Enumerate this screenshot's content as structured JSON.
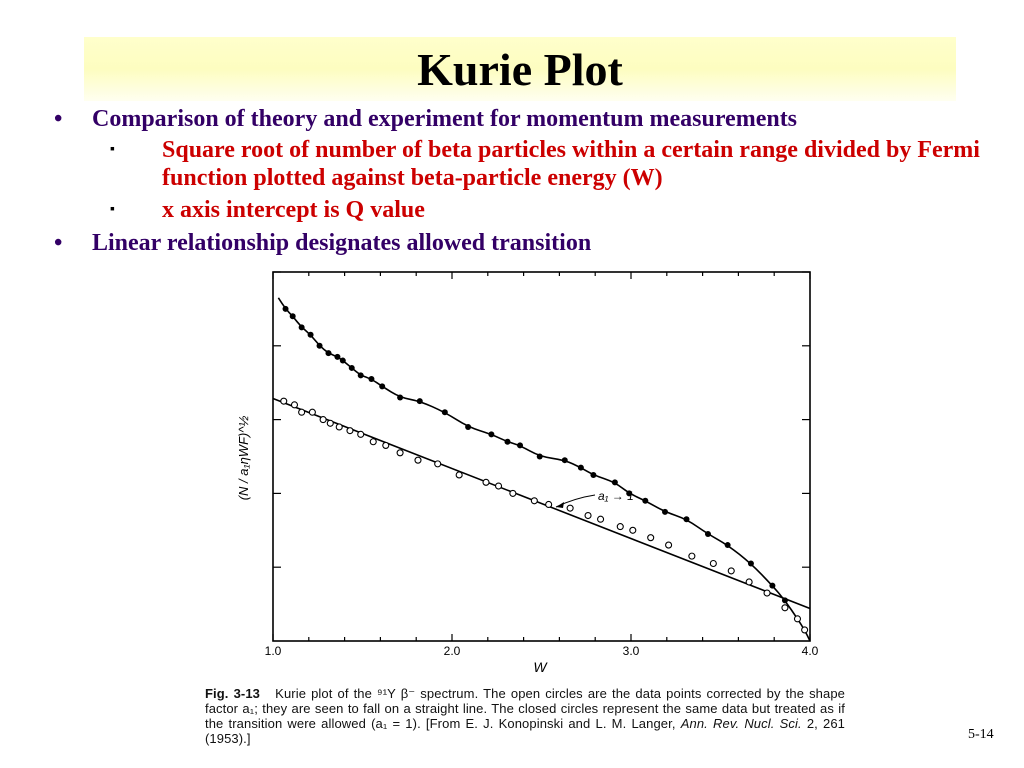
{
  "slide": {
    "title": "Kurie Plot",
    "bullets": [
      {
        "marker": "•",
        "text": "Comparison of theory and experiment for momentum measurements"
      },
      {
        "marker": "▪",
        "text": "Square root of number of beta particles within a certain range divided by Fermi function plotted against beta-particle energy (W)"
      },
      {
        "marker": "▪",
        "text": "x axis intercept is Q value"
      },
      {
        "marker": "•",
        "text": "Linear relationship designates allowed transition"
      }
    ],
    "slide_number": "5-14"
  },
  "caption": {
    "fig_label": "Fig. 3-13",
    "text_1": "Kurie plot of the ⁹¹Y β⁻ spectrum. The open circles are the data points corrected by the shape factor a₁; they are seen to fall on a straight line. The closed circles represent the same data but treated as if the transition were allowed (a₁ = 1). [From E. J. Konopinski and L. M. Langer,",
    "journal": "Ann. Rev. Nucl. Sci.",
    "text_2": "2, 261 (1953).]"
  },
  "chart_data": {
    "type": "scatter",
    "title": "",
    "xlabel": "W",
    "ylabel": "(N / a₁ηWF)^½",
    "xlim": [
      1.0,
      4.0
    ],
    "ylim": [
      0,
      1.0
    ],
    "x_ticks": [
      "1.0",
      "2.0",
      "3.0",
      "4.0"
    ],
    "annotation": "a₁ → 1",
    "colors": {
      "axes": "#000000",
      "filled": "#000000",
      "open_fill": "#ffffff"
    },
    "series": [
      {
        "marker": "filled",
        "fit": "curve",
        "points": [
          [
            1.07,
            0.9
          ],
          [
            1.11,
            0.88
          ],
          [
            1.16,
            0.85
          ],
          [
            1.21,
            0.83
          ],
          [
            1.26,
            0.8
          ],
          [
            1.31,
            0.78
          ],
          [
            1.36,
            0.77
          ],
          [
            1.39,
            0.76
          ],
          [
            1.44,
            0.74
          ],
          [
            1.49,
            0.72
          ],
          [
            1.55,
            0.71
          ],
          [
            1.61,
            0.69
          ],
          [
            1.71,
            0.66
          ],
          [
            1.82,
            0.65
          ],
          [
            1.96,
            0.62
          ],
          [
            2.09,
            0.58
          ],
          [
            2.22,
            0.56
          ],
          [
            2.31,
            0.54
          ],
          [
            2.38,
            0.53
          ],
          [
            2.49,
            0.5
          ],
          [
            2.63,
            0.49
          ],
          [
            2.72,
            0.47
          ],
          [
            2.79,
            0.45
          ],
          [
            2.91,
            0.43
          ],
          [
            2.99,
            0.4
          ],
          [
            3.08,
            0.38
          ],
          [
            3.19,
            0.35
          ],
          [
            3.31,
            0.33
          ],
          [
            3.43,
            0.29
          ],
          [
            3.54,
            0.26
          ],
          [
            3.67,
            0.21
          ],
          [
            3.79,
            0.15
          ],
          [
            3.86,
            0.11
          ],
          [
            3.93,
            0.06
          ],
          [
            3.97,
            0.03
          ]
        ]
      },
      {
        "marker": "open",
        "fit": "line",
        "points": [
          [
            1.06,
            0.65
          ],
          [
            1.12,
            0.64
          ],
          [
            1.16,
            0.62
          ],
          [
            1.22,
            0.62
          ],
          [
            1.28,
            0.6
          ],
          [
            1.32,
            0.59
          ],
          [
            1.37,
            0.58
          ],
          [
            1.43,
            0.57
          ],
          [
            1.49,
            0.56
          ],
          [
            1.56,
            0.54
          ],
          [
            1.63,
            0.53
          ],
          [
            1.71,
            0.51
          ],
          [
            1.81,
            0.49
          ],
          [
            1.92,
            0.48
          ],
          [
            2.04,
            0.45
          ],
          [
            2.19,
            0.43
          ],
          [
            2.26,
            0.42
          ],
          [
            2.34,
            0.4
          ],
          [
            2.46,
            0.38
          ],
          [
            2.54,
            0.37
          ],
          [
            2.66,
            0.36
          ],
          [
            2.76,
            0.34
          ],
          [
            2.83,
            0.33
          ],
          [
            2.94,
            0.31
          ],
          [
            3.01,
            0.3
          ],
          [
            3.11,
            0.28
          ],
          [
            3.21,
            0.26
          ],
          [
            3.34,
            0.23
          ],
          [
            3.46,
            0.21
          ],
          [
            3.56,
            0.19
          ],
          [
            3.66,
            0.16
          ],
          [
            3.76,
            0.13
          ],
          [
            3.86,
            0.09
          ],
          [
            3.93,
            0.06
          ],
          [
            3.97,
            0.03
          ]
        ]
      }
    ]
  }
}
